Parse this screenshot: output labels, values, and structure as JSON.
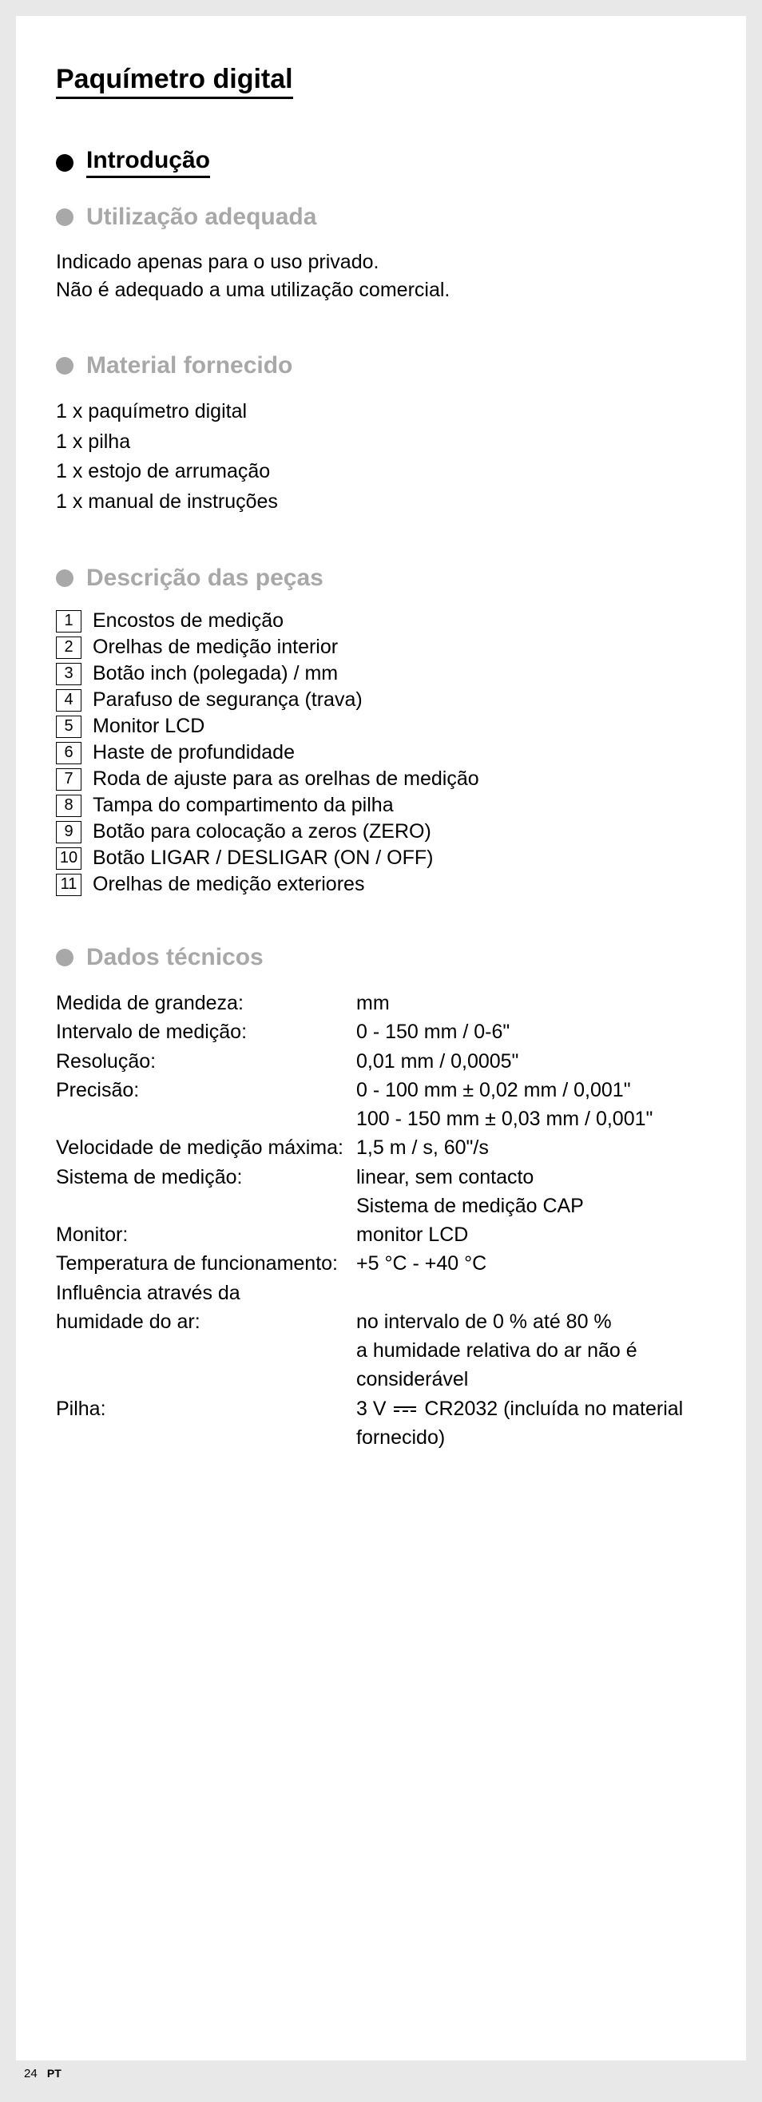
{
  "title": "Paquímetro digital",
  "sections": {
    "intro": "Introdução",
    "usage": "Utilização adequada",
    "supplied": "Material fornecido",
    "parts": "Descrição das peças",
    "tech": "Dados técnicos"
  },
  "usage_text_1": "Indicado apenas para o uso privado.",
  "usage_text_2": "Não é adequado a uma utilização comercial.",
  "supplied_items": [
    "1 x paquímetro digital",
    "1 x pilha",
    "1 x estojo de arrumação",
    "1 x manual de instruções"
  ],
  "parts": [
    {
      "n": "1",
      "label": "Encostos de medição"
    },
    {
      "n": "2",
      "label": "Orelhas de medição interior"
    },
    {
      "n": "3",
      "label": "Botão inch (polegada) / mm"
    },
    {
      "n": "4",
      "label": "Parafuso de segurança (trava)"
    },
    {
      "n": "5",
      "label": "Monitor LCD"
    },
    {
      "n": "6",
      "label": "Haste de profundidade"
    },
    {
      "n": "7",
      "label": "Roda de ajuste para as orelhas de medição"
    },
    {
      "n": "8",
      "label": "Tampa do compartimento da pilha"
    },
    {
      "n": "9",
      "label": "Botão para colocação a zeros (ZERO)"
    },
    {
      "n": "10",
      "label": "Botão LIGAR / DESLIGAR (ON / OFF)"
    },
    {
      "n": "11",
      "label": "Orelhas de medição exteriores"
    }
  ],
  "tech": {
    "r1_label": "Medida de grandeza:",
    "r1_val": "mm",
    "r2_label": "Intervalo de medição:",
    "r2_val": "0 - 150 mm / 0-6\"",
    "r3_label": "Resolução:",
    "r3_val": "0,01 mm / 0,0005\"",
    "r4_label": "Precisão:",
    "r4_val1": "0 - 100 mm ± 0,02 mm / 0,001\"",
    "r4_val2": "100 - 150 mm ± 0,03 mm / 0,001\"",
    "r5_label": "Velocidade de medição máxima:",
    "r5_val": "1,5 m / s, 60\"/s",
    "r6_label": "Sistema de medição:",
    "r6_val1": "linear, sem contacto",
    "r6_val2": "Sistema de medição CAP",
    "r7_label": "Monitor:",
    "r7_val": "monitor LCD",
    "r8_label": "Temperatura de funcionamento:",
    "r8_val": "+5 °C - +40 °C",
    "r9_label1": "Influência através da",
    "r9_label2": "humidade do ar:",
    "r9_val1": "no intervalo de 0 % até 80 %",
    "r9_val2": "a humidade relativa do ar não é considerável",
    "r10_label": "Pilha:",
    "r10_val_pre": "3 V ",
    "r10_val_post": " CR2032 (incluída no material fornecido)"
  },
  "footer": {
    "page": "24",
    "lang": "PT"
  }
}
